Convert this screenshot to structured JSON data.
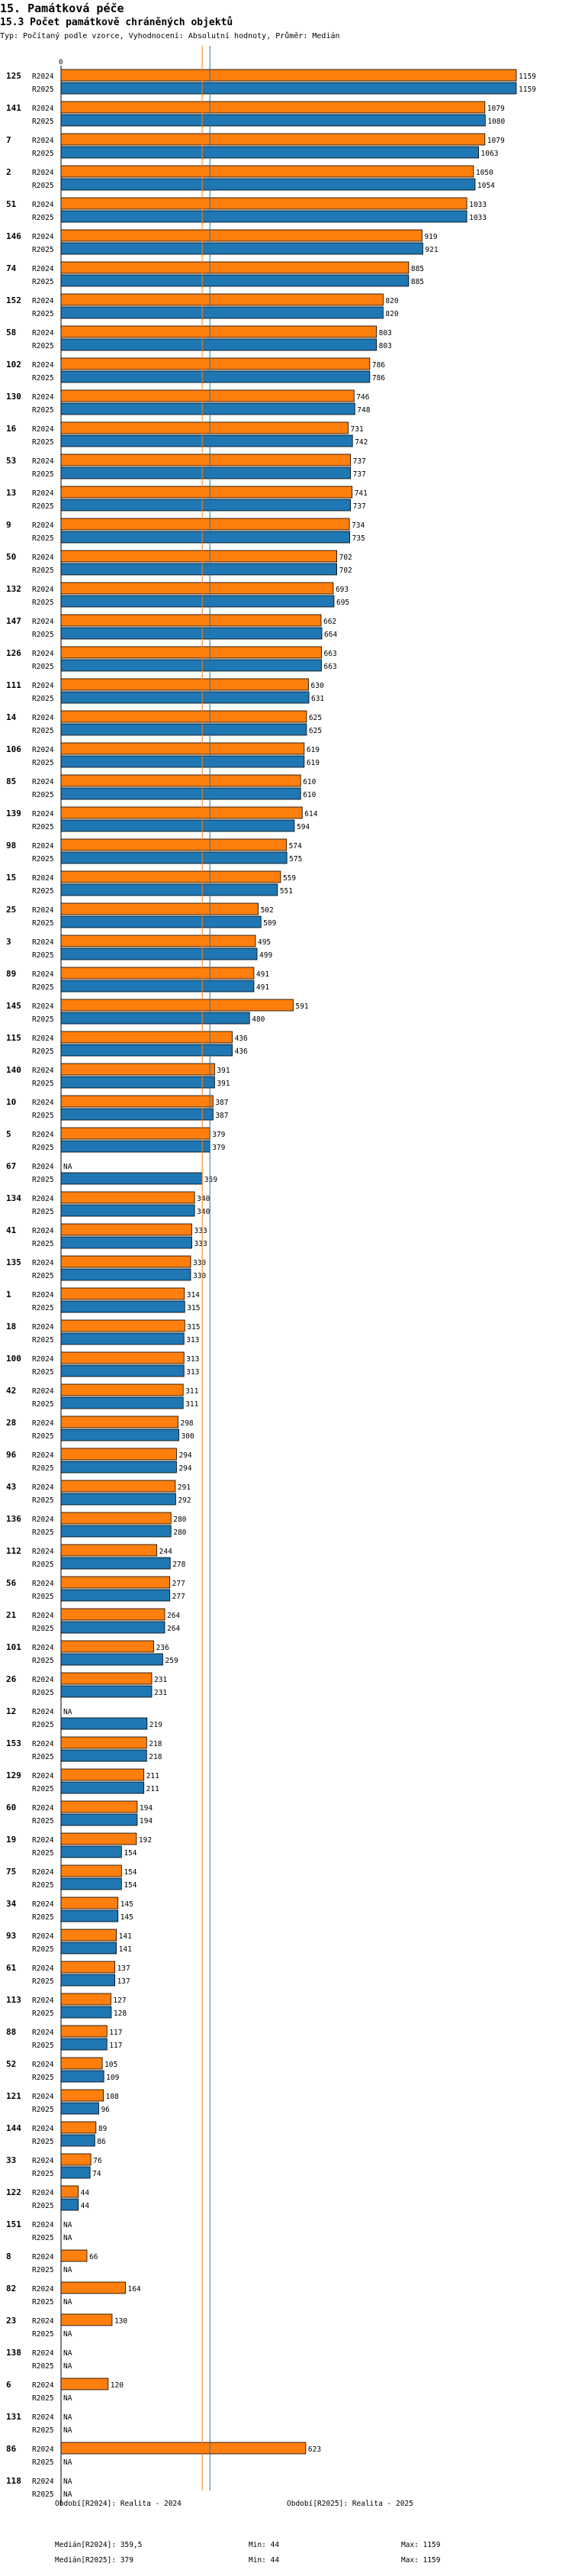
{
  "header": {
    "section": "15. Památková péče",
    "title": "15.3 Počet památkově chráněných objektů",
    "subtitle": "Typ: Počítaný podle vzorce, Vyhodnocení: Absolutní hodnoty, Průměr: Medián"
  },
  "colors": {
    "r2024": "#ff7f0e",
    "r2025": "#1f77b4",
    "median2024": "#ff7f0e",
    "median2025": "#1f77b4"
  },
  "chart_data": {
    "type": "bar",
    "orientation": "horizontal",
    "axis_zero_label": "0",
    "xlim": [
      0,
      1159
    ],
    "series_labels": [
      "R2024",
      "R2025"
    ],
    "missing_label": "NA",
    "medians": [
      359.5,
      379
    ],
    "categories": [
      "125",
      "141",
      "7",
      "2",
      "51",
      "146",
      "74",
      "152",
      "58",
      "102",
      "130",
      "16",
      "53",
      "13",
      "9",
      "50",
      "132",
      "147",
      "126",
      "111",
      "14",
      "106",
      "85",
      "139",
      "98",
      "15",
      "25",
      "3",
      "89",
      "145",
      "115",
      "140",
      "10",
      "5",
      "67",
      "134",
      "41",
      "135",
      "1",
      "18",
      "100",
      "42",
      "28",
      "96",
      "43",
      "136",
      "112",
      "56",
      "21",
      "101",
      "26",
      "12",
      "153",
      "129",
      "60",
      "19",
      "75",
      "34",
      "93",
      "61",
      "113",
      "88",
      "52",
      "121",
      "144",
      "33",
      "122",
      "151",
      "8",
      "82",
      "23",
      "138",
      "6",
      "131",
      "86",
      "118"
    ],
    "series": [
      {
        "name": "R2024",
        "values": [
          1159,
          1079,
          1079,
          1050,
          1033,
          919,
          885,
          820,
          803,
          786,
          746,
          731,
          737,
          741,
          734,
          702,
          693,
          662,
          663,
          630,
          625,
          619,
          610,
          614,
          574,
          559,
          502,
          495,
          491,
          591,
          436,
          391,
          387,
          379,
          null,
          340,
          333,
          330,
          314,
          315,
          313,
          311,
          298,
          294,
          291,
          280,
          244,
          277,
          264,
          236,
          231,
          null,
          218,
          211,
          194,
          192,
          154,
          145,
          141,
          137,
          127,
          117,
          105,
          108,
          89,
          76,
          44,
          null,
          66,
          164,
          130,
          null,
          120,
          null,
          623,
          null
        ]
      },
      {
        "name": "R2025",
        "values": [
          1159,
          1080,
          1063,
          1054,
          1033,
          921,
          885,
          820,
          803,
          786,
          748,
          742,
          737,
          737,
          735,
          702,
          695,
          664,
          663,
          631,
          625,
          619,
          610,
          594,
          575,
          551,
          509,
          499,
          491,
          480,
          436,
          391,
          387,
          379,
          359,
          340,
          333,
          330,
          315,
          313,
          313,
          311,
          300,
          294,
          292,
          280,
          278,
          277,
          264,
          259,
          231,
          219,
          218,
          211,
          194,
          154,
          154,
          145,
          141,
          137,
          128,
          117,
          109,
          96,
          86,
          74,
          44,
          null,
          null,
          null,
          null,
          null,
          null,
          null,
          null,
          null
        ]
      }
    ]
  },
  "footer": {
    "period1": "Období[R2024]: Realita - 2024",
    "period2": "Období[R2025]: Realita - 2025",
    "median1": "Medián[R2024]: 359,5",
    "median2": "Medián[R2025]: 379",
    "min1": "Min: 44",
    "min2": "Min: 44",
    "max1": "Max: 1159",
    "max2": "Max: 1159"
  }
}
